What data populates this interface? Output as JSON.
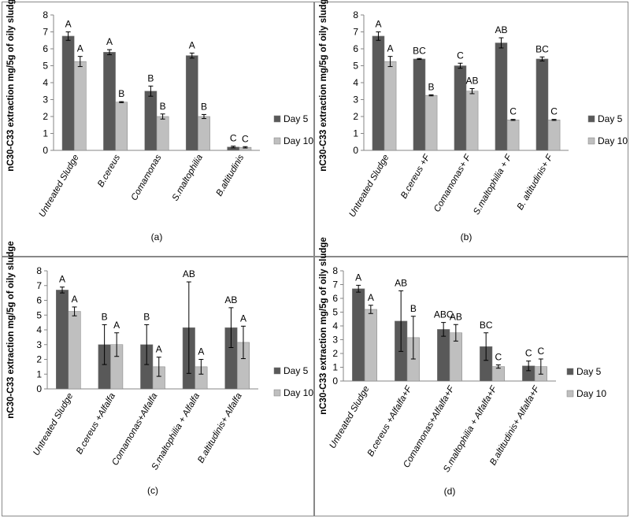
{
  "chart_data": [
    {
      "type": "bar",
      "panel_label": "(a)",
      "ylabel": "nC30-C33 extraction mg/5g of oily sludge",
      "ylim": [
        0,
        8
      ],
      "yticks": [
        0,
        1,
        2,
        3,
        4,
        5,
        6,
        7,
        8
      ],
      "legend_position": "right",
      "categories": [
        "Untreated Sludge",
        "B.cereus",
        "Comamonas",
        "S.maltophilia",
        "B.altitudinis"
      ],
      "series": [
        {
          "name": "Day 5",
          "color": "#595959",
          "values": [
            6.75,
            5.8,
            3.5,
            5.6,
            0.2
          ],
          "errors": [
            0.25,
            0.15,
            0.3,
            0.15,
            0.05
          ],
          "letters": [
            "A",
            "A",
            "B",
            "A",
            "C"
          ]
        },
        {
          "name": "Day 10",
          "color": "#bfbfbf",
          "values": [
            5.25,
            2.85,
            2.0,
            2.0,
            0.18
          ],
          "errors": [
            0.3,
            0.03,
            0.15,
            0.12,
            0.04
          ],
          "letters": [
            "A",
            "B",
            "B",
            "B",
            "C"
          ]
        }
      ]
    },
    {
      "type": "bar",
      "panel_label": "(b)",
      "ylabel": "nC30-C33 extraction mg/5g of oily sludge",
      "ylim": [
        0,
        8
      ],
      "yticks": [
        0,
        1,
        2,
        3,
        4,
        5,
        6,
        7,
        8
      ],
      "legend_position": "right",
      "categories": [
        "Untreated Sludge",
        "B.cereus +F",
        "Comamonas+ F",
        "S.maltophilia + F",
        "B. altitudinis+ F"
      ],
      "series": [
        {
          "name": "Day 5",
          "color": "#595959",
          "values": [
            6.75,
            5.4,
            5.0,
            6.35,
            5.4
          ],
          "errors": [
            0.25,
            0.03,
            0.15,
            0.3,
            0.12
          ],
          "letters": [
            "A",
            "BC",
            "C",
            "AB",
            "BC"
          ]
        },
        {
          "name": "Day 10",
          "color": "#bfbfbf",
          "values": [
            5.25,
            3.25,
            3.5,
            1.8,
            1.8
          ],
          "errors": [
            0.3,
            0.03,
            0.15,
            0.03,
            0.03
          ],
          "letters": [
            "A",
            "B",
            "AB",
            "C",
            "C"
          ]
        }
      ]
    },
    {
      "type": "bar",
      "panel_label": "(c)",
      "ylabel": "nC30-C33 extraction mg/5g of oily sludge",
      "ylim": [
        0,
        8
      ],
      "yticks": [
        0,
        1,
        2,
        3,
        4,
        5,
        6,
        7,
        8
      ],
      "legend_position": "right",
      "categories": [
        "Untreated Sludge",
        "B.cereus +Alfalfa",
        "Comamonas+Alfalfa",
        "S.maltophilia + Alfalfa",
        "B.altitudinis+ Alfalfa"
      ],
      "series": [
        {
          "name": "Day 5",
          "color": "#595959",
          "values": [
            6.7,
            3.0,
            3.0,
            4.15,
            4.15
          ],
          "errors": [
            0.2,
            1.35,
            1.35,
            3.1,
            1.35
          ],
          "letters": [
            "A",
            "B",
            "B",
            "AB",
            "AB"
          ]
        },
        {
          "name": "Day 10",
          "color": "#bfbfbf",
          "values": [
            5.25,
            3.0,
            1.5,
            1.5,
            3.15
          ],
          "errors": [
            0.3,
            0.8,
            0.65,
            0.5,
            1.1
          ],
          "letters": [
            "A",
            "A",
            "A",
            "A",
            "A"
          ]
        }
      ]
    },
    {
      "type": "bar",
      "panel_label": "(d)",
      "ylabel": "nC30-C33 extraction mg/5g of oily sludge",
      "ylim": [
        0,
        8
      ],
      "yticks": [
        0,
        1,
        2,
        3,
        4,
        5,
        6,
        7,
        8
      ],
      "legend_position": "right",
      "categories": [
        "Untreated Sludge",
        "B.cereus +Alfalfa+F",
        "Comamonas+Alfalfa+F",
        "S.maltophilia + Alfalfa+F",
        "B.altitudinis+ Alfalfa+F"
      ],
      "series": [
        {
          "name": "Day 5",
          "color": "#595959",
          "values": [
            6.7,
            4.35,
            3.75,
            2.5,
            1.1
          ],
          "errors": [
            0.25,
            2.2,
            0.5,
            1.0,
            0.35
          ],
          "letters": [
            "A",
            "AB",
            "ABC",
            "BC",
            "C"
          ]
        },
        {
          "name": "Day 10",
          "color": "#bfbfbf",
          "values": [
            5.2,
            3.15,
            3.5,
            1.05,
            1.05
          ],
          "errors": [
            0.3,
            1.55,
            0.6,
            0.12,
            0.55
          ],
          "letters": [
            "A",
            "B",
            "AB",
            "C",
            "C"
          ]
        }
      ]
    }
  ]
}
